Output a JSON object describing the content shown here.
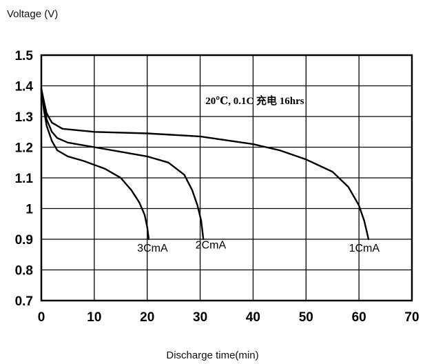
{
  "chart_data": {
    "type": "line",
    "ylabel": "Voltage (V)",
    "xlabel": "Discharge time(min)",
    "xlim": [
      0,
      70
    ],
    "ylim": [
      0.7,
      1.5
    ],
    "xticks": [
      "0",
      "10",
      "20",
      "30",
      "40",
      "50",
      "60",
      "70"
    ],
    "yticks": [
      "0.7",
      "0.8",
      "0.9",
      "1",
      "1.1",
      "1.2",
      "1.3",
      "1.4",
      "1.5"
    ],
    "xtick_values": [
      0,
      10,
      20,
      30,
      40,
      50,
      60,
      70
    ],
    "ytick_values": [
      0.7,
      0.8,
      0.9,
      1.0,
      1.1,
      1.2,
      1.3,
      1.4,
      1.5
    ],
    "grid": true,
    "annotation": "20℃, 0.1C 充电 16hrs",
    "series": [
      {
        "name": "3CmA",
        "points": [
          [
            0,
            1.39
          ],
          [
            0.5,
            1.32
          ],
          [
            1,
            1.27
          ],
          [
            2,
            1.22
          ],
          [
            3,
            1.19
          ],
          [
            5,
            1.17
          ],
          [
            8,
            1.155
          ],
          [
            12,
            1.13
          ],
          [
            15,
            1.1
          ],
          [
            17,
            1.06
          ],
          [
            18.5,
            1.02
          ],
          [
            19.5,
            0.98
          ],
          [
            20,
            0.94
          ],
          [
            20.3,
            0.9
          ]
        ]
      },
      {
        "name": "2CmA",
        "points": [
          [
            0,
            1.39
          ],
          [
            0.5,
            1.34
          ],
          [
            1,
            1.29
          ],
          [
            2,
            1.25
          ],
          [
            3,
            1.23
          ],
          [
            5,
            1.215
          ],
          [
            10,
            1.2
          ],
          [
            15,
            1.185
          ],
          [
            20,
            1.17
          ],
          [
            24,
            1.15
          ],
          [
            27,
            1.11
          ],
          [
            28.5,
            1.06
          ],
          [
            29.5,
            1.01
          ],
          [
            30.2,
            0.96
          ],
          [
            30.6,
            0.9
          ]
        ]
      },
      {
        "name": "1CmA",
        "points": [
          [
            0,
            1.39
          ],
          [
            0.5,
            1.35
          ],
          [
            1,
            1.31
          ],
          [
            2,
            1.28
          ],
          [
            4,
            1.26
          ],
          [
            10,
            1.25
          ],
          [
            20,
            1.245
          ],
          [
            30,
            1.235
          ],
          [
            40,
            1.21
          ],
          [
            45,
            1.19
          ],
          [
            50,
            1.16
          ],
          [
            55,
            1.12
          ],
          [
            58,
            1.07
          ],
          [
            60,
            1.01
          ],
          [
            61,
            0.96
          ],
          [
            61.8,
            0.9
          ]
        ]
      }
    ],
    "label_positions": [
      {
        "text": "3CmA",
        "x": 21,
        "y": 0.86
      },
      {
        "text": "2CmA",
        "x": 32,
        "y": 0.87
      },
      {
        "text": "1CmA",
        "x": 61,
        "y": 0.86
      }
    ],
    "annotation_position": {
      "x": 31,
      "y": 1.34
    }
  }
}
